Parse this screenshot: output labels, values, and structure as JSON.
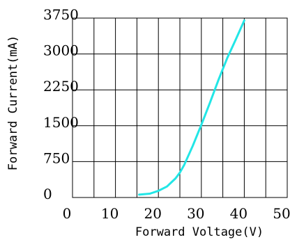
{
  "chart_data": {
    "type": "line",
    "xlabel": "Forward Voltage(V)",
    "ylabel": "Forward Current(mA)",
    "xlim": [
      0,
      50
    ],
    "ylim": [
      0,
      3750
    ],
    "x_ticks": [
      "0",
      "10",
      "20",
      "30",
      "40",
      "50"
    ],
    "y_ticks": [
      "0",
      "750",
      "1500",
      "2250",
      "3000",
      "3750"
    ],
    "x_grid_step": 5,
    "y_grid_step": 750,
    "grid": true,
    "series": [
      {
        "color": "#22e6e6",
        "x": [
          15.5,
          18,
          20,
          22,
          24,
          25,
          26,
          28,
          30,
          32,
          34,
          36,
          38,
          40
        ],
        "y": [
          60,
          80,
          140,
          230,
          400,
          520,
          680,
          1080,
          1520,
          1980,
          2460,
          2910,
          3300,
          3700
        ]
      }
    ]
  }
}
